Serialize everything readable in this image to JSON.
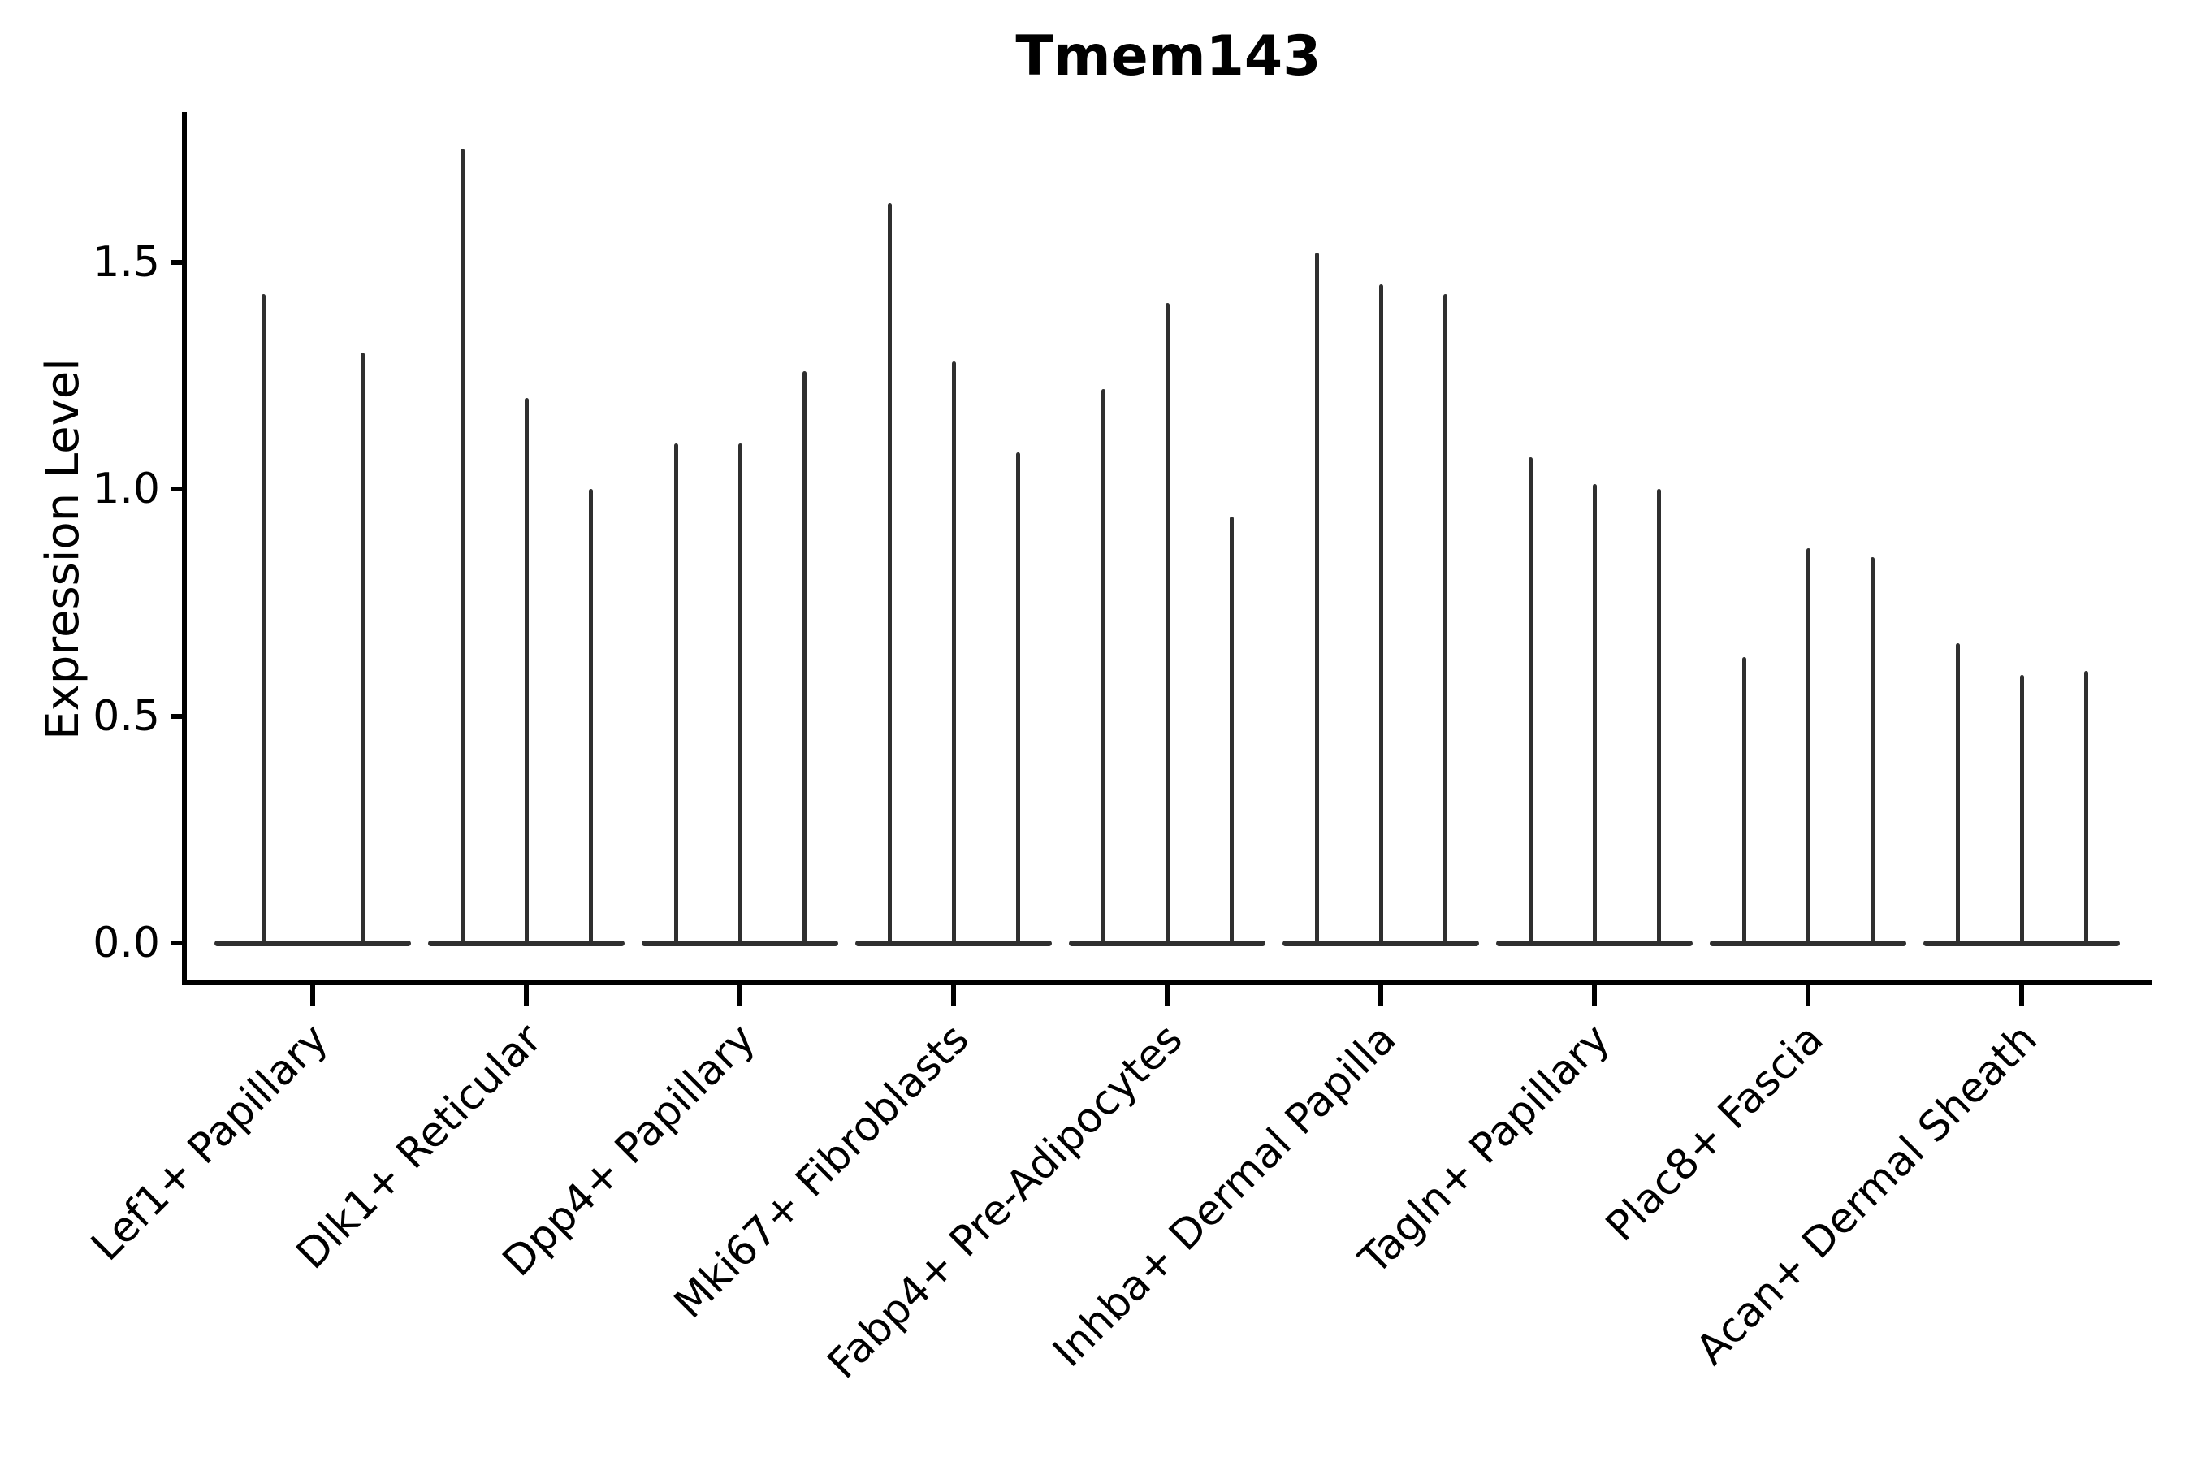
{
  "figure": {
    "title": "Tmem143",
    "ylabel": "Expression Level"
  },
  "chart_data": {
    "type": "violin",
    "title": "Tmem143",
    "xlabel": "",
    "ylabel": "Expression Level",
    "yticks": [
      0.0,
      0.5,
      1.0,
      1.5
    ],
    "ylim": [
      -0.08,
      1.83
    ],
    "grid": false,
    "legend": "none",
    "colors": {
      "violin": "#2f2f2f",
      "spine": "#000000",
      "text": "#000000",
      "background": "#ffffff"
    },
    "note": "Each category shows thin violins (one per sample); values are the peak expression level of each violin, all violins share a flat base at 0.0",
    "categories": [
      {
        "label": "Lef1+ Papillary",
        "violin_peaks": [
          1.43,
          1.3
        ]
      },
      {
        "label": "Dlk1+ Reticular",
        "violin_peaks": [
          1.75,
          1.2,
          1.0
        ]
      },
      {
        "label": "Dpp4+ Papillary",
        "violin_peaks": [
          1.1,
          1.1,
          1.26
        ]
      },
      {
        "label": "Mki67+ Fibroblasts",
        "violin_peaks": [
          1.63,
          1.28,
          1.08
        ]
      },
      {
        "label": "Fabp4+ Pre-Adipocytes",
        "violin_peaks": [
          1.22,
          1.41,
          0.94
        ]
      },
      {
        "label": "Inhba+ Dermal Papilla",
        "violin_peaks": [
          1.52,
          1.45,
          1.43
        ]
      },
      {
        "label": "Tagln+ Papillary",
        "violin_peaks": [
          1.07,
          1.01,
          1.0
        ]
      },
      {
        "label": "Plac8+ Fascia",
        "violin_peaks": [
          0.63,
          0.87,
          0.85
        ]
      },
      {
        "label": "Acan+ Dermal Sheath",
        "violin_peaks": [
          0.66,
          0.59,
          0.6
        ]
      }
    ]
  }
}
